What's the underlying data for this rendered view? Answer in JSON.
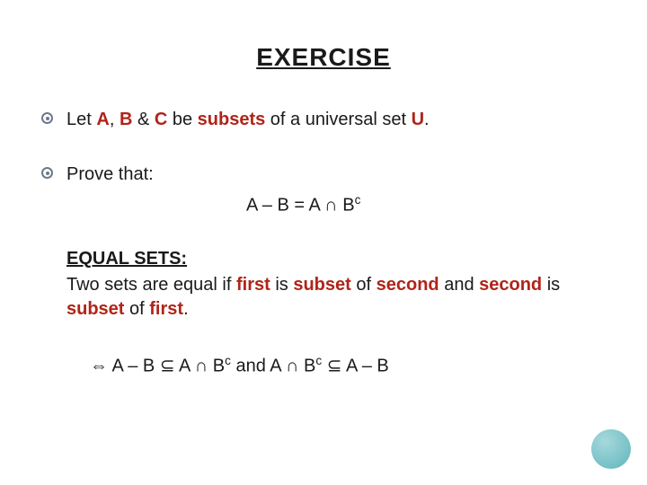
{
  "title": "EXERCISE",
  "bullet1": {
    "pre": "Let ",
    "A": "A",
    "comma": ", ",
    "B": "B",
    "amp": " & ",
    "C": "C",
    "mid": " be ",
    "subsets": "subsets",
    "mid2": " of a universal set ",
    "U": "U",
    "dot": "."
  },
  "bullet2": {
    "text": "Prove that:",
    "f_left": "A – B = A ",
    "f_cap": "∩",
    "f_B": " B",
    "f_sup": "c"
  },
  "equal_sets": {
    "heading": "EQUAL SETS:",
    "p1": "Two sets are equal if ",
    "first": "first",
    "p2": " is ",
    "subset": "subset",
    "p3": " of ",
    "second": "second",
    "p4": " and ",
    "second2": "second",
    "p5": " is ",
    "subset2": "subset",
    "p6": " of ",
    "first2": "first",
    "p7": "."
  },
  "conclusion": {
    "iff": "⇔",
    "seg1": " A – B ",
    "sub1": "⊆",
    "seg2": " A ",
    "cap1": "∩",
    "seg3": " B",
    "sup1": "c",
    "seg4": "  and  A ",
    "cap2": "∩",
    "seg5": " B",
    "sup2": "c",
    "seg6": " ",
    "sub2": "⊆",
    "seg7": " A – B"
  },
  "colors": {
    "red": "#b02418",
    "text": "#1a1a1a",
    "bullet_ring": "#6a7a8a",
    "circle_gradient": [
      "#a7d8dc",
      "#7bc4c9",
      "#5fb3b8"
    ]
  }
}
